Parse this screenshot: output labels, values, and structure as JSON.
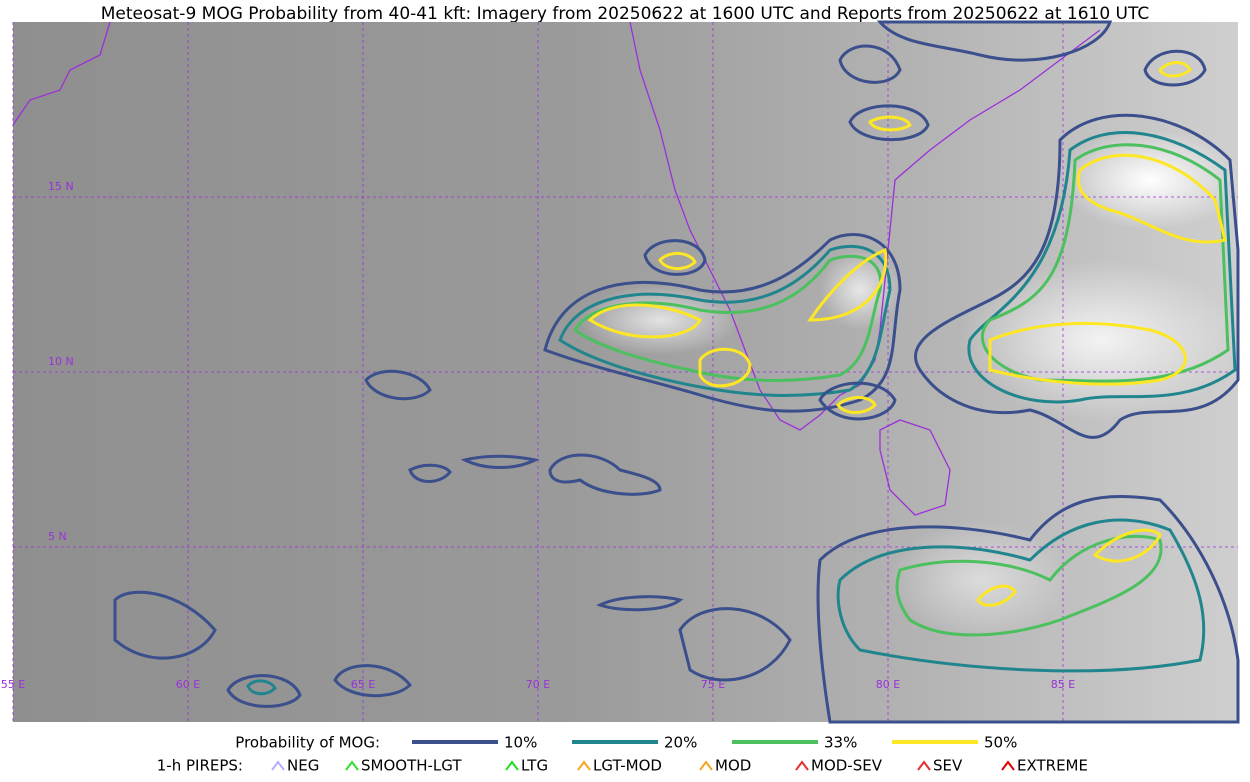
{
  "title": "Meteosat-9 MOG Probability from 40-41 kft: Imagery from 20250622 at 1600 UTC and Reports from 20250622 at 1610 UTC",
  "map": {
    "lat_labels": [
      "15 N",
      "10 N",
      "5 N"
    ],
    "lon_labels": [
      "55 E",
      "60 E",
      "65 E",
      "70 E",
      "75 E",
      "80 E",
      "85 E"
    ]
  },
  "legend": {
    "mog_label": "Probability of MOG:",
    "mog_levels": [
      {
        "label": "10%",
        "color": "#3a4f8c"
      },
      {
        "label": "20%",
        "color": "#21858e"
      },
      {
        "label": "33%",
        "color": "#4cc05f"
      },
      {
        "label": "50%",
        "color": "#fde725"
      }
    ],
    "pireps_label": "1-h PIREPS:",
    "pireps": [
      {
        "label": "NEG",
        "color": "#b0b0ff"
      },
      {
        "label": "SMOOTH-LGT",
        "color": "#33dd33"
      },
      {
        "label": "LTG",
        "color": "#22dd22"
      },
      {
        "label": "LGT-MOD",
        "color": "#f5a623"
      },
      {
        "label": "MOD",
        "color": "#f5a623"
      },
      {
        "label": "MOD-SEV",
        "color": "#e83030"
      },
      {
        "label": "SEV",
        "color": "#e83030"
      },
      {
        "label": "EXTREME",
        "color": "#e00000"
      }
    ]
  }
}
